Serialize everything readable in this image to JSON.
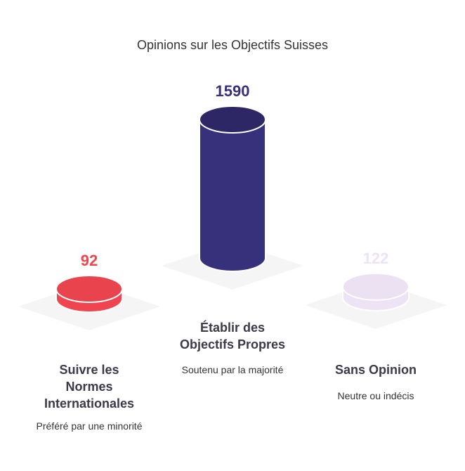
{
  "chart_data": {
    "type": "bar",
    "title": "Opinions sur les Objectifs Suisses",
    "categories": [
      "Suivre les Normes Internationales",
      "Établir des Objectifs Propres",
      "Sans Opinion"
    ],
    "category_lines": [
      [
        "Suivre les",
        "Normes",
        "Internationales"
      ],
      [
        "Établir des",
        "Objectifs Propres"
      ],
      [
        "Sans Opinion"
      ]
    ],
    "descriptions": [
      "Préféré par une minorité",
      "Soutenu par la majorité",
      "Neutre ou indécis"
    ],
    "values": [
      92,
      1590,
      122
    ],
    "colors": [
      "#f0454f",
      "#37307b",
      "#ede3f4"
    ],
    "value_label_colors": [
      "#f0454f",
      "#37307b",
      "#ede3f4"
    ],
    "ylim": [
      0,
      1590
    ]
  }
}
